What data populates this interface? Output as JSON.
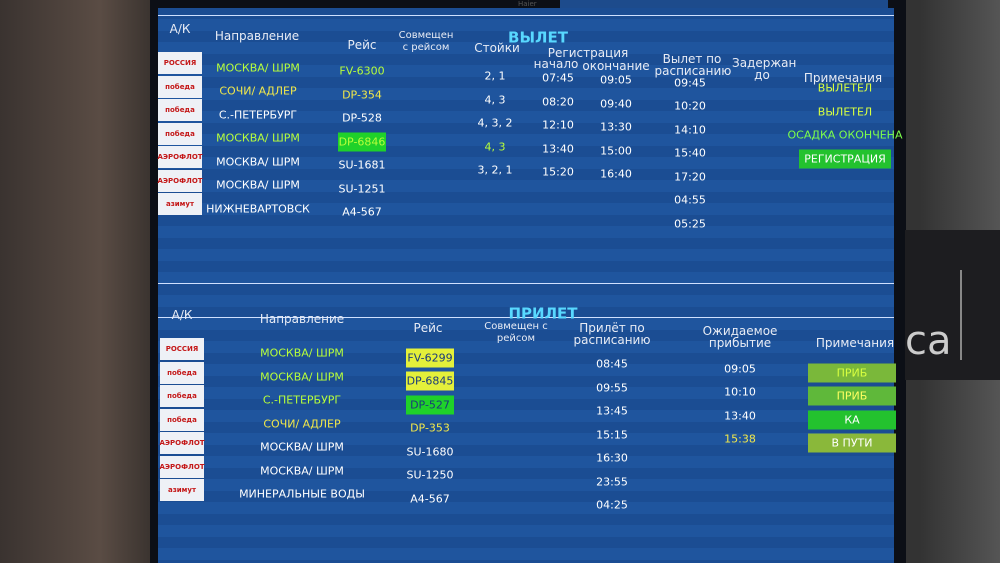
{
  "brand": "Haier",
  "wall_sign": "ca",
  "departures": {
    "title": "ВЫЛЕТ",
    "headers": {
      "airline": "А/К",
      "destination": "Направление",
      "flight": "Рейс",
      "combined": "Совмещен с рейсом",
      "counters": "Стойки",
      "checkin": "Регистрация",
      "checkin_start": "начало",
      "checkin_end": "окончание",
      "scheduled": "Вылет по расписанию",
      "delayed": "Задержан до",
      "remarks": "Примечания"
    },
    "rows": [
      {
        "airline": "РОССИЯ",
        "destination": "МОСКВА/ ШРМ",
        "dest_color": "#b8ff3a",
        "flight": "FV-6300",
        "flight_color": "#b8ff3a",
        "counters": "2, 1",
        "start": "07:45",
        "end": "09:05",
        "scheduled": "09:45",
        "remark": "ВЫЛЕТЕЛ",
        "remark_color": "#d8ff40"
      },
      {
        "airline": "победа",
        "destination": "СОЧИ/ АДЛЕР",
        "dest_color": "#f2e84a",
        "flight": "DP-354",
        "flight_color": "#f2e84a",
        "counters": "4, 3",
        "start": "08:20",
        "end": "09:40",
        "scheduled": "10:20",
        "remark": "ВЫЛЕТЕЛ",
        "remark_color": "#d8ff40"
      },
      {
        "airline": "победа",
        "destination": "С.-ПЕТЕРБУРГ",
        "dest_color": "#ffffff",
        "flight": "DP-528",
        "flight_color": "#ffffff",
        "counters": "4, 3, 2",
        "start": "12:10",
        "end": "13:30",
        "scheduled": "14:10",
        "remark": "ОСАДКА ОКОНЧЕНА",
        "remark_color": "#7dff4a"
      },
      {
        "airline": "победа",
        "destination": "МОСКВА/ ШРМ",
        "dest_color": "#b8ff3a",
        "flight": "DP-6846",
        "flight_color": "#b8ff3a",
        "flight_bg": "#1fd12a",
        "counters": "4, 3",
        "counters_color": "#b8ff3a",
        "start": "13:40",
        "end": "15:00",
        "scheduled": "15:40",
        "remark": "РЕГИСТРАЦИЯ",
        "remark_color": "#ffffff",
        "remark_bg": "#23c22e"
      },
      {
        "airline": "АЭРОФЛОТ",
        "destination": "МОСКВА/ ШРМ",
        "dest_color": "#ffffff",
        "flight": "SU-1681",
        "flight_color": "#ffffff",
        "counters": "3, 2, 1",
        "start": "15:20",
        "end": "16:40",
        "scheduled": "17:20"
      },
      {
        "airline": "АЭРОФЛОТ",
        "destination": "МОСКВА/ ШРМ",
        "dest_color": "#ffffff",
        "flight": "SU-1251",
        "flight_color": "#ffffff",
        "scheduled": "04:55"
      },
      {
        "airline": "азимут",
        "destination": "НИЖНЕВАРТОВСК",
        "dest_color": "#ffffff",
        "flight": "A4-567",
        "flight_color": "#ffffff",
        "scheduled": "05:25"
      }
    ]
  },
  "arrivals": {
    "title": "ПРИЛЕТ",
    "headers": {
      "airline": "А/К",
      "destination": "Направление",
      "flight": "Рейс",
      "combined": "Совмещен с рейсом",
      "scheduled": "Прилёт по расписанию",
      "expected": "Ожидаемое прибытие",
      "remarks": "Примечания"
    },
    "rows": [
      {
        "airline": "РОССИЯ",
        "destination": "МОСКВА/ ШРМ",
        "dest_color": "#b8ff3a",
        "flight": "FV-6299",
        "flight_color": "#1a3a7a",
        "flight_bg": "#e4f03a",
        "scheduled": "08:45",
        "expected": "09:05",
        "remark": "ПРИБ",
        "remark_color": "#d8ff40",
        "remark_bg": "#7ab83a"
      },
      {
        "airline": "победа",
        "destination": "МОСКВА/ ШРМ",
        "dest_color": "#b8ff3a",
        "flight": "DP-6845",
        "flight_color": "#1a3a7a",
        "flight_bg": "#e4f03a",
        "scheduled": "09:55",
        "expected": "10:10",
        "remark": "ПРИБ",
        "remark_color": "#ffff60",
        "remark_bg": "#5fb83a"
      },
      {
        "airline": "победа",
        "destination": "С.-ПЕТЕРБУРГ",
        "dest_color": "#b8ff3a",
        "flight": "DP-527",
        "flight_color": "#1a3a7a",
        "flight_bg": "#1fd12a",
        "scheduled": "13:45",
        "expected": "13:40",
        "remark": "КА",
        "remark_color": "#ffffff",
        "remark_bg": "#23c22e"
      },
      {
        "airline": "победа",
        "destination": "СОЧИ/ АДЛЕР",
        "dest_color": "#f2e84a",
        "flight": "DP-353",
        "flight_color": "#f2e84a",
        "scheduled": "15:15",
        "expected": "15:38",
        "expected_color": "#f2e84a",
        "remark": "В ПУТИ",
        "remark_color": "#ffffff",
        "remark_bg": "#8ab83a"
      },
      {
        "airline": "АЭРОФЛОТ",
        "destination": "МОСКВА/ ШРМ",
        "dest_color": "#ffffff",
        "flight": "SU-1680",
        "flight_color": "#ffffff",
        "scheduled": "16:30"
      },
      {
        "airline": "АЭРОФЛОТ",
        "destination": "МОСКВА/ ШРМ",
        "dest_color": "#ffffff",
        "flight": "SU-1250",
        "flight_color": "#ffffff",
        "scheduled": "23:55"
      },
      {
        "airline": "азимут",
        "destination": "МИНЕРАЛЬНЫЕ ВОДЫ",
        "dest_color": "#ffffff",
        "flight": "A4-567",
        "flight_color": "#ffffff",
        "scheduled": "04:25"
      }
    ]
  }
}
